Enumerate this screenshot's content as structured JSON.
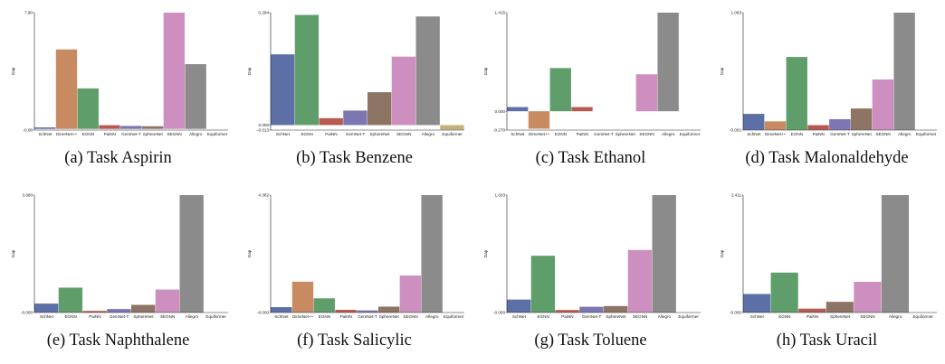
{
  "palette": {
    "SchNet": "#5c6fa6",
    "DimeNet++": "#c88a60",
    "EGNN": "#5f9e6b",
    "PaiNN": "#b85a52",
    "GemNet-T": "#7c76b3",
    "SphereNet": "#8e7464",
    "SEGNN": "#cc8fc0",
    "Allegro": "#8b8b8b",
    "Equiformer": "#c4b27a"
  },
  "chart_data": [
    {
      "type": "bar",
      "caption": "(a) Task Aspirin",
      "ylabel": "Gap",
      "ylim": [
        -0.08,
        7.9
      ],
      "ytick_labels": [
        "7.90",
        "-0.08"
      ],
      "categories": [
        "SchNet",
        "DimeNet++",
        "EGNN",
        "PaiNN",
        "GemNet-T",
        "SphereNet",
        "SEGNN",
        "Allegro",
        "Equiformer"
      ],
      "values": [
        0.1,
        5.4,
        2.75,
        0.25,
        0.2,
        0.18,
        7.9,
        4.4,
        0.0
      ]
    },
    {
      "type": "bar",
      "caption": "(b) Task Benzene",
      "ylabel": "Gap",
      "ylim": [
        -0.013,
        0.294
      ],
      "ytick_labels": [
        "0.294",
        "0.000",
        "-0.013"
      ],
      "categories": [
        "SchNet",
        "EGNN",
        "PaiNN",
        "GemNet-T",
        "SphereNet",
        "SEGNN",
        "Allegro",
        "Equiformer"
      ],
      "values": [
        0.185,
        0.288,
        0.018,
        0.038,
        0.086,
        0.179,
        0.284,
        -0.012
      ]
    },
    {
      "type": "bar",
      "caption": "(c) Task Ethanol",
      "ylabel": "Gap",
      "ylim": [
        -0.27,
        1.415
      ],
      "ytick_labels": [
        "1.415",
        "0.000",
        "-0.270"
      ],
      "categories": [
        "SchNet",
        "DimeNet++",
        "EGNN",
        "PaiNN",
        "GemNet-T",
        "SphereNet",
        "SEGNN",
        "Allegro",
        "Equiformer"
      ],
      "values": [
        0.06,
        -0.25,
        0.62,
        0.06,
        0.0,
        0.0,
        0.53,
        1.415,
        0.0
      ]
    },
    {
      "type": "bar",
      "caption": "(d) Task Malonaldehyde",
      "ylabel": "Gap",
      "ylim": [
        -0.001,
        1.093
      ],
      "ytick_labels": [
        "1.093",
        "-0.001"
      ],
      "categories": [
        "SchNet",
        "DimeNet++",
        "EGNN",
        "PaiNN",
        "GemNet-T",
        "SphereNet",
        "SEGNN",
        "Allegro",
        "Equiformer"
      ],
      "values": [
        0.15,
        0.08,
        0.68,
        0.045,
        0.1,
        0.2,
        0.47,
        1.093,
        0.0
      ]
    },
    {
      "type": "bar",
      "caption": "(e) Task Naphthalene",
      "ylabel": "Gap",
      "ylim": [
        -0.0,
        3.68
      ],
      "ytick_labels": [
        "3.680",
        "-0.000"
      ],
      "categories": [
        "SchNet",
        "EGNN",
        "PaiNN",
        "GemNet-T",
        "SphereNet",
        "SEGNN",
        "Allegro",
        "Equiformer"
      ],
      "values": [
        0.28,
        0.78,
        0.05,
        0.11,
        0.24,
        0.72,
        3.68,
        0.0
      ]
    },
    {
      "type": "bar",
      "caption": "(f) Task Salicylic",
      "ylabel": "Gap",
      "ylim": [
        -0.0,
        4.382
      ],
      "ytick_labels": [
        "4.382",
        "-0.000"
      ],
      "categories": [
        "SchNet",
        "DimeNet++",
        "EGNN",
        "PaiNN",
        "GemNet-T",
        "SphereNet",
        "SEGNN",
        "Allegro",
        "Equiformer"
      ],
      "values": [
        0.2,
        1.15,
        0.53,
        0.1,
        0.08,
        0.22,
        1.38,
        4.382,
        0.0
      ]
    },
    {
      "type": "bar",
      "caption": "(g) Task Toluene",
      "ylabel": "Gap",
      "ylim": [
        -0.0,
        1.633
      ],
      "ytick_labels": [
        "1.633",
        "-0.000"
      ],
      "categories": [
        "SchNet",
        "EGNN",
        "PaiNN",
        "GemNet-T",
        "SphereNet",
        "SEGNN",
        "Allegro",
        "Equiformer"
      ],
      "values": [
        0.18,
        0.79,
        0.035,
        0.08,
        0.09,
        0.87,
        1.633,
        0.0
      ]
    },
    {
      "type": "bar",
      "caption": "(h) Task Uracil",
      "ylabel": "Gap",
      "ylim": [
        -0.0,
        2.411
      ],
      "ytick_labels": [
        "2.411",
        "-0.000"
      ],
      "categories": [
        "SchNet",
        "EGNN",
        "PaiNN",
        "SphereNet",
        "SEGNN",
        "Allegro",
        "Equiformer"
      ],
      "values": [
        0.38,
        0.82,
        0.08,
        0.22,
        0.63,
        2.411,
        0.0
      ]
    }
  ]
}
